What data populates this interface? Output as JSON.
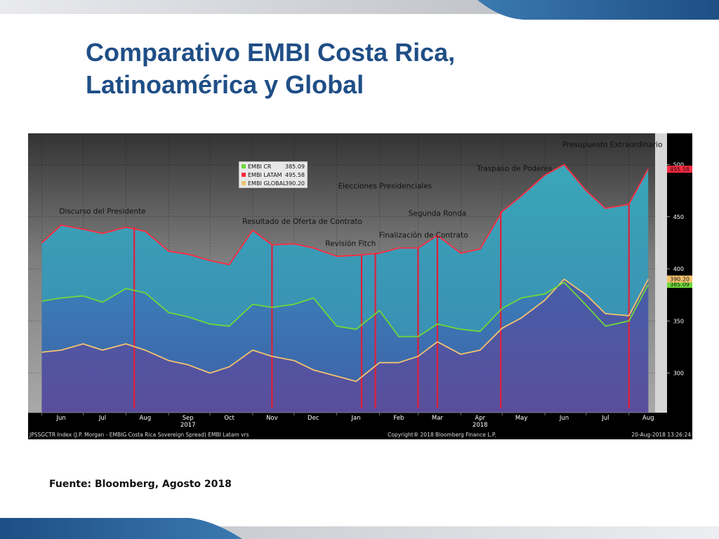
{
  "slide": {
    "title_line1": "Comparativo EMBI Costa Rica,",
    "title_line2": "Latinoamérica y Global",
    "source": "Fuente: Bloomberg, Agosto 2018",
    "colors": {
      "title": "#1f4e86",
      "band_blue": "#2d6aa3",
      "band_gray": "#c4c6cc"
    }
  },
  "chart_data": {
    "type": "line",
    "x": [
      "2017-06-01",
      "2017-06-15",
      "2017-07-01",
      "2017-07-15",
      "2017-08-01",
      "2017-08-15",
      "2017-09-01",
      "2017-09-15",
      "2017-10-01",
      "2017-10-15",
      "2017-11-01",
      "2017-11-15",
      "2017-12-01",
      "2017-12-15",
      "2018-01-01",
      "2018-01-15",
      "2018-02-01",
      "2018-02-15",
      "2018-03-01",
      "2018-03-15",
      "2018-04-01",
      "2018-04-15",
      "2018-05-01",
      "2018-05-15",
      "2018-06-01",
      "2018-06-15",
      "2018-07-01",
      "2018-07-15",
      "2018-08-01",
      "2018-08-15"
    ],
    "series": [
      {
        "name": "EMBI CR",
        "color": "#6fd83a",
        "last_value": "385.09",
        "values": [
          369,
          372,
          374,
          368,
          381,
          377,
          358,
          354,
          347,
          345,
          366,
          363,
          366,
          372,
          345,
          342,
          360,
          335,
          335,
          347,
          342,
          340,
          362,
          372,
          376,
          387,
          365,
          345,
          350,
          385
        ]
      },
      {
        "name": "EMBI LATAM",
        "color": "#ff2a40",
        "last_value": "495.58",
        "values": [
          425,
          442,
          438,
          434,
          440,
          436,
          417,
          414,
          408,
          404,
          437,
          423,
          424,
          420,
          412,
          413,
          415,
          420,
          420,
          432,
          415,
          419,
          455,
          470,
          490,
          500,
          475,
          458,
          462,
          496
        ]
      },
      {
        "name": "EMBI GLOBAL",
        "color": "#f5c36e",
        "last_value": "390.20",
        "values": [
          320,
          322,
          328,
          322,
          328,
          322,
          312,
          308,
          300,
          306,
          322,
          316,
          312,
          303,
          297,
          292,
          310,
          310,
          316,
          330,
          318,
          322,
          343,
          353,
          370,
          390,
          375,
          357,
          355,
          390
        ]
      }
    ],
    "ylim": [
      262,
      530
    ],
    "yticks": [
      300,
      350,
      400,
      450,
      500
    ],
    "xticks": [
      {
        "date": "2017-06-15",
        "label": "Jun"
      },
      {
        "date": "2017-07-15",
        "label": "Jul"
      },
      {
        "date": "2017-08-15",
        "label": "Aug"
      },
      {
        "date": "2017-09-15",
        "label": "Sep"
      },
      {
        "date": "2017-10-15",
        "label": "Oct"
      },
      {
        "date": "2017-11-15",
        "label": "Nov"
      },
      {
        "date": "2017-12-15",
        "label": "Dec"
      },
      {
        "date": "2018-01-15",
        "label": "Jan"
      },
      {
        "date": "2018-02-15",
        "label": "Feb"
      },
      {
        "date": "2018-03-15",
        "label": "Mar"
      },
      {
        "date": "2018-04-15",
        "label": "Apr"
      },
      {
        "date": "2018-05-15",
        "label": "May"
      },
      {
        "date": "2018-06-15",
        "label": "Jun"
      },
      {
        "date": "2018-07-15",
        "label": "Jul"
      },
      {
        "date": "2018-08-15",
        "label": "Aug"
      }
    ],
    "year_labels": [
      {
        "date": "2017-09-15",
        "label": "2017"
      },
      {
        "date": "2018-04-15",
        "label": "2018"
      }
    ],
    "event_lines": [
      "2017-08-07",
      "2017-11-15",
      "2018-01-19",
      "2018-01-29",
      "2018-03-01",
      "2018-03-15",
      "2018-04-30",
      "2018-08-01"
    ],
    "annotations": [
      {
        "text": "Discurso del Presidente",
        "date": "2017-07-15",
        "y": 453
      },
      {
        "text": "Resultado de Oferta de Contrato",
        "date": "2017-12-07",
        "y": 443
      },
      {
        "text": "Revisión Fitch",
        "date": "2018-01-11",
        "y": 422
      },
      {
        "text": "Elecciones Presidenciales",
        "date": "2018-02-05",
        "y": 477
      },
      {
        "text": "Finalización de Contrato",
        "date": "2018-03-05",
        "y": 430
      },
      {
        "text": "Segunda Ronda",
        "date": "2018-03-15",
        "y": 451
      },
      {
        "text": "Traspaso de Poderes",
        "date": "2018-05-10",
        "y": 494
      },
      {
        "text": "Presupuesto Extraordinario",
        "date": "2018-07-20",
        "y": 517
      }
    ],
    "legend_position": "top-left",
    "footer_left": "JPSSGCTR Index (J.P. Morgan - EMBIG Costa Rica Sovereign Spread) EMBI Latam vrs",
    "footer_right": "Copyright® 2018 Bloomberg Finance L.P.",
    "footer_stamp": "20-Aug-2018 13:26:24",
    "grid": true
  }
}
